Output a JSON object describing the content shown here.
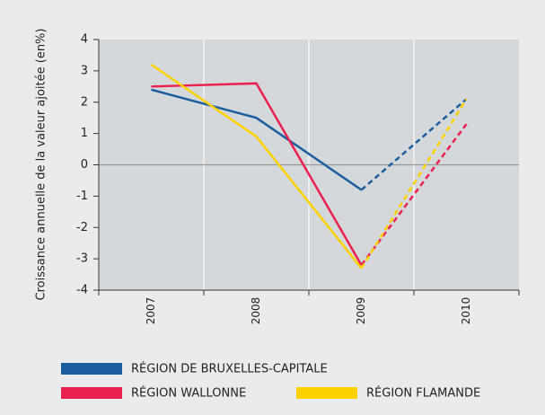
{
  "chart_data": {
    "type": "line",
    "y_label": "Croissance annuelle de la valeur ajoitée  (en%)",
    "categories": [
      "2007",
      "2008",
      "2009",
      "2010"
    ],
    "series": [
      {
        "name": "RÉGION DE BRUXELLES-CAPITALE",
        "color": "#1b5e9f",
        "values": [
          2.4,
          1.5,
          -0.8,
          2.1
        ]
      },
      {
        "name": "RÉGION WALLONNE",
        "color": "#e8214f",
        "values": [
          2.5,
          2.6,
          -3.2,
          1.3
        ]
      },
      {
        "name": "RÉGION FLAMANDE",
        "color": "#fdd100",
        "values": [
          3.2,
          0.9,
          -3.3,
          2.1
        ]
      }
    ],
    "dashed_from": "2009",
    "ylim": [
      -4,
      4
    ],
    "yticks": [
      -4,
      -3,
      -2,
      -1,
      0,
      1,
      2,
      3,
      4
    ]
  }
}
